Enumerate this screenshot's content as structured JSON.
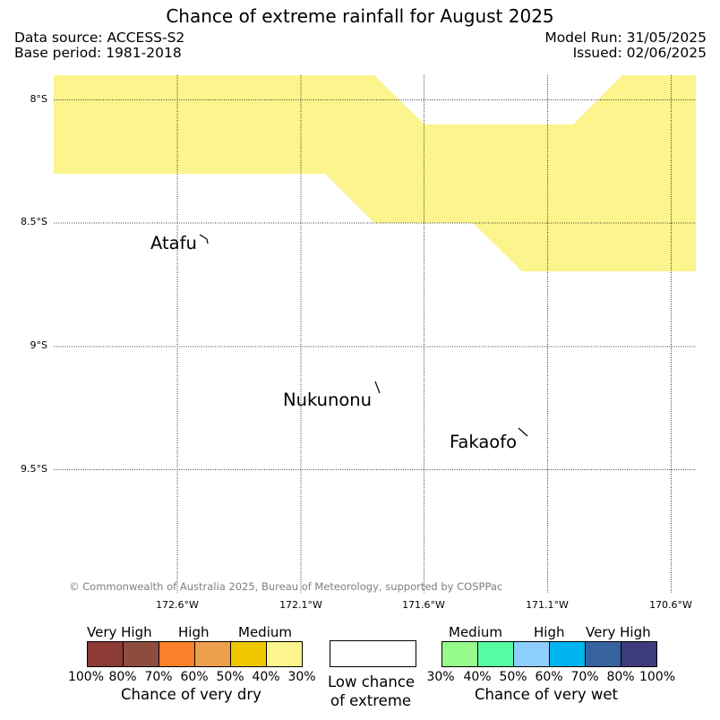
{
  "title": "Chance of extreme rainfall for August 2025",
  "meta": {
    "data_source": "Data source: ACCESS-S2",
    "base_period": "Base period: 1981-2018",
    "model_run": "Model Run: 31/05/2025",
    "issued": "Issued: 02/06/2025"
  },
  "map": {
    "lat_labels": [
      "8°S",
      "8.5°S",
      "9°S",
      "9.5°S"
    ],
    "lon_labels": [
      "172.6°W",
      "172.1°W",
      "171.6°W",
      "171.1°W",
      "170.6°W"
    ],
    "places": [
      "Atafu",
      "Nukunonu",
      "Fakaofo"
    ],
    "shaded_category": "Medium chance of very dry (30%-40%)",
    "shaded_color": "#fcf48c",
    "copyright": "© Commonwealth of Australia 2025, Bureau of Meteorology, supported by COSPPac"
  },
  "legend": {
    "dry": {
      "groups": [
        "Very High",
        "High",
        "Medium"
      ],
      "ticks": [
        "100%",
        "80%",
        "70%",
        "60%",
        "50%",
        "40%",
        "30%"
      ],
      "colors": [
        "#8b3a35",
        "#8c4d3e",
        "#fc7f2b",
        "#eda04c",
        "#efc800",
        "#fcf48c"
      ],
      "caption": "Chance of very dry"
    },
    "low": {
      "caption_line1": "Low chance",
      "caption_line2": "of extreme"
    },
    "wet": {
      "groups": [
        "Medium",
        "High",
        "Very High"
      ],
      "ticks": [
        "30%",
        "40%",
        "50%",
        "60%",
        "70%",
        "80%",
        "100%"
      ],
      "colors": [
        "#98fc8c",
        "#58fca4",
        "#8ccefc",
        "#00b4f0",
        "#3662a0",
        "#3e3c7a"
      ],
      "caption": "Chance of very wet"
    }
  }
}
